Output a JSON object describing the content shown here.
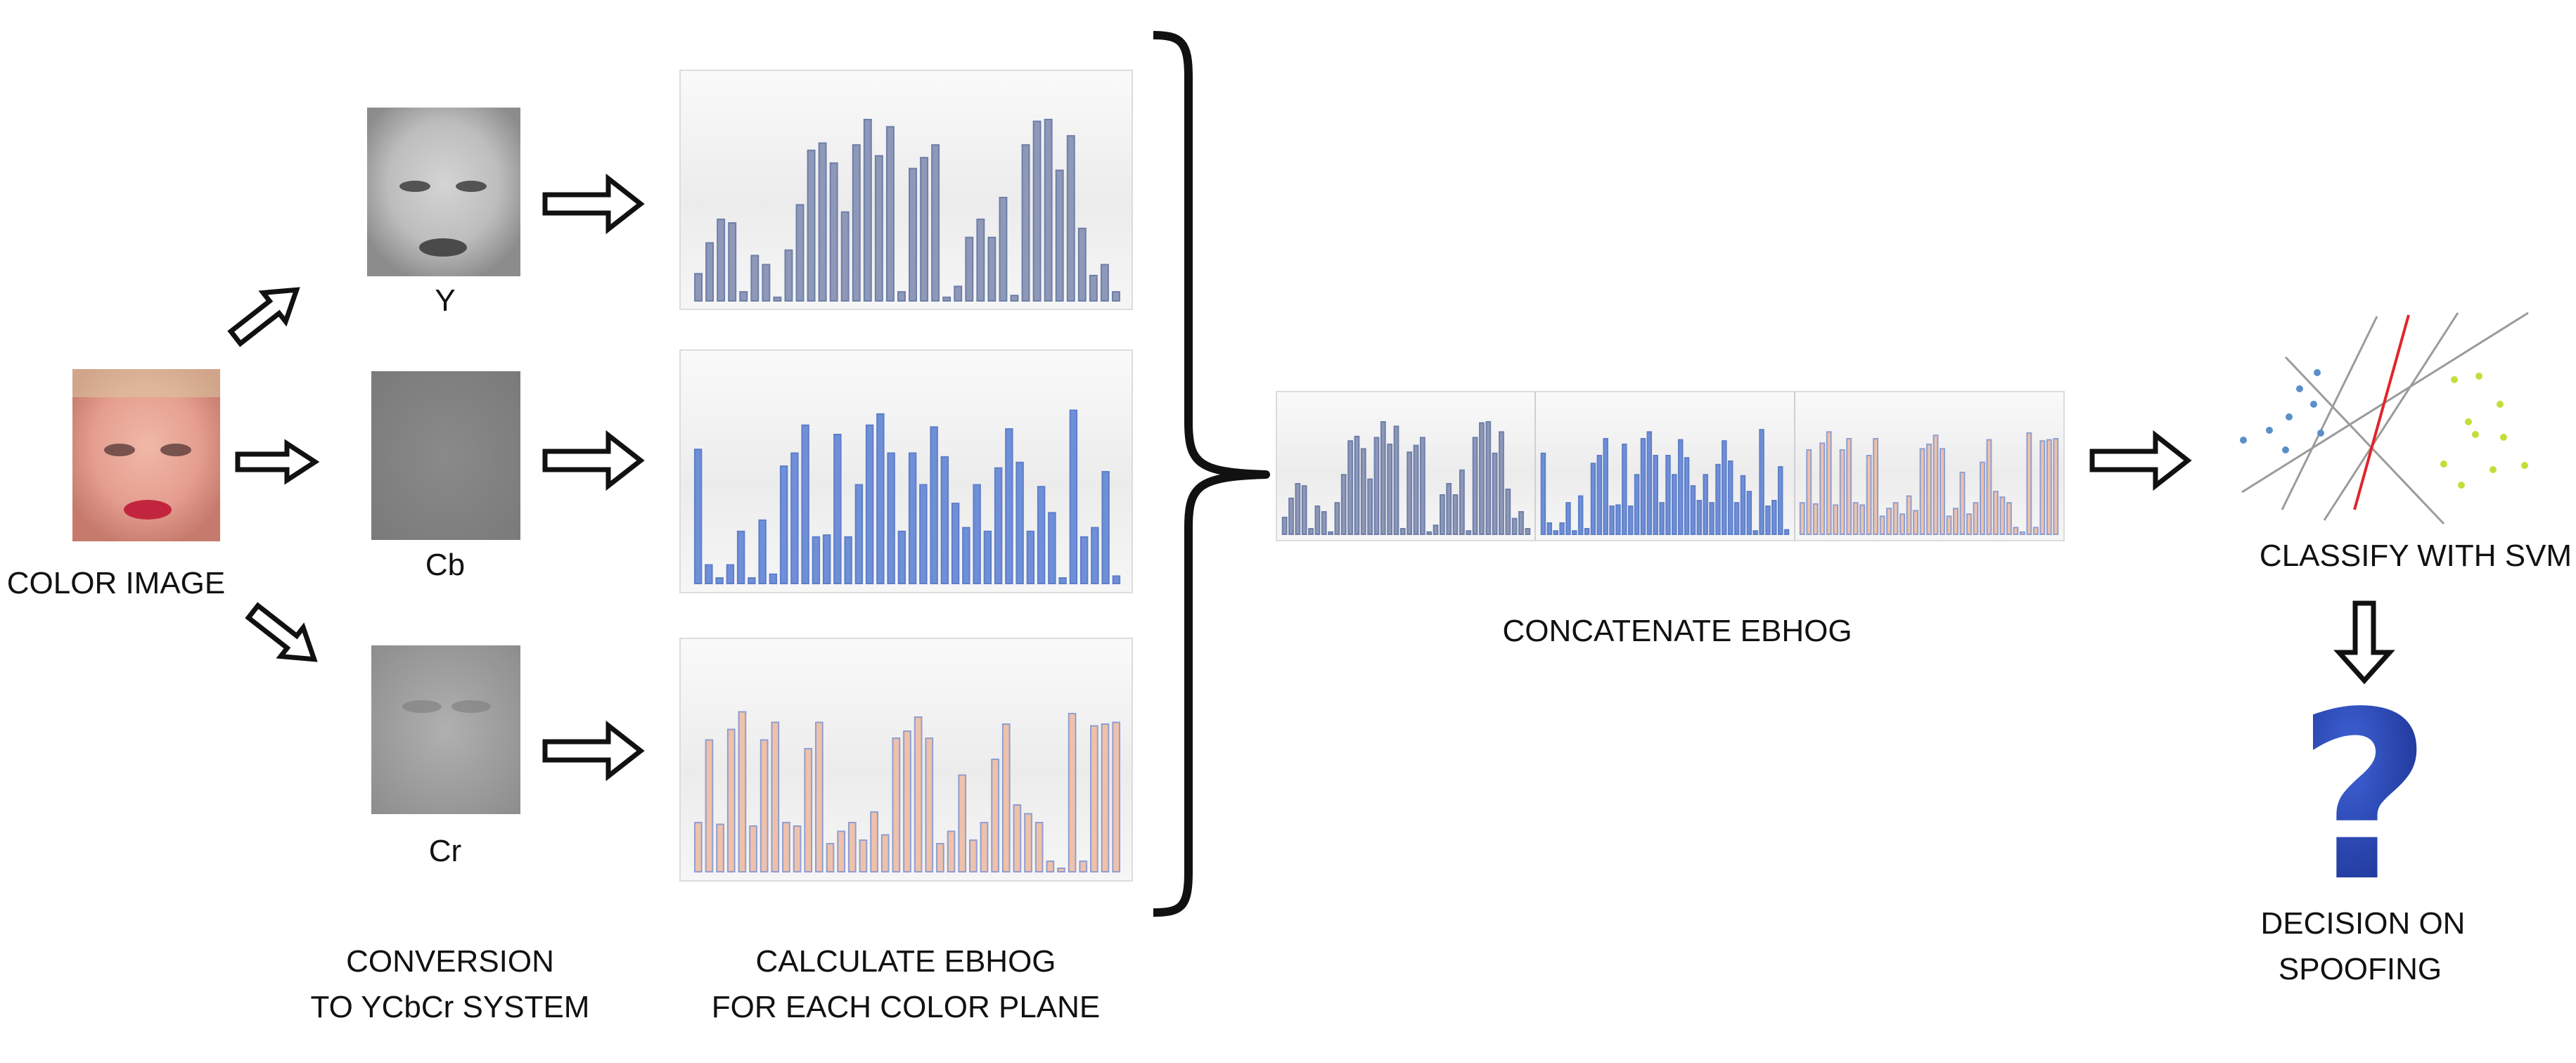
{
  "labels": {
    "color_image": "COLOR IMAGE",
    "plane_y": "Y",
    "plane_cb": "Cb",
    "plane_cr": "Cr",
    "conversion_line1": "CONVERSION",
    "conversion_line2": "TO YCbCr SYSTEM",
    "calculate_line1": "CALCULATE EBHOG",
    "calculate_line2": "FOR EACH COLOR PLANE",
    "concatenate": "CONCATENATE EBHOG",
    "classify": "CLASSIFY WITH SVM",
    "decision_line1": "DECISION ON",
    "decision_line2": "SPOOFING",
    "question_mark": "?"
  },
  "colors": {
    "y_bars": "#8e98b8",
    "cb_bars": "#6f8fd8",
    "cr_bars": "#efc1aa",
    "cr_bar_stroke": "#8f9fd0",
    "svm_blue_dots": "#5b8fc9",
    "svm_green_dots": "#c5dd3c",
    "svm_red_line": "#e0252b",
    "question": "#1c3aa3"
  },
  "chart_data": [
    {
      "type": "bar",
      "series_plane": "Y",
      "values": [
        0.15,
        0.32,
        0.45,
        0.43,
        0.05,
        0.25,
        0.2,
        0.02,
        0.28,
        0.53,
        0.83,
        0.87,
        0.76,
        0.49,
        0.86,
        1.0,
        0.8,
        0.96,
        0.05,
        0.73,
        0.79,
        0.86,
        0.02,
        0.08,
        0.35,
        0.45,
        0.35,
        0.57,
        0.03,
        0.86,
        0.99,
        1.0,
        0.72,
        0.91,
        0.4,
        0.14,
        0.2,
        0.05
      ]
    },
    {
      "type": "bar",
      "series_plane": "Cb",
      "values": [
        0.72,
        0.1,
        0.03,
        0.1,
        0.28,
        0.03,
        0.34,
        0.05,
        0.63,
        0.7,
        0.85,
        0.25,
        0.26,
        0.8,
        0.25,
        0.53,
        0.85,
        0.91,
        0.7,
        0.28,
        0.7,
        0.53,
        0.84,
        0.68,
        0.43,
        0.3,
        0.53,
        0.28,
        0.62,
        0.83,
        0.65,
        0.28,
        0.52,
        0.38,
        0.03,
        0.93,
        0.25,
        0.3,
        0.6,
        0.04
      ]
    },
    {
      "type": "bar",
      "series_plane": "Cr",
      "values": [
        0.28,
        0.75,
        0.27,
        0.81,
        0.91,
        0.26,
        0.75,
        0.85,
        0.28,
        0.26,
        0.7,
        0.85,
        0.16,
        0.23,
        0.28,
        0.18,
        0.34,
        0.21,
        0.76,
        0.8,
        0.88,
        0.76,
        0.16,
        0.23,
        0.55,
        0.18,
        0.28,
        0.64,
        0.84,
        0.38,
        0.33,
        0.28,
        0.06,
        0.02,
        0.9,
        0.06,
        0.83,
        0.84,
        0.85
      ]
    }
  ]
}
